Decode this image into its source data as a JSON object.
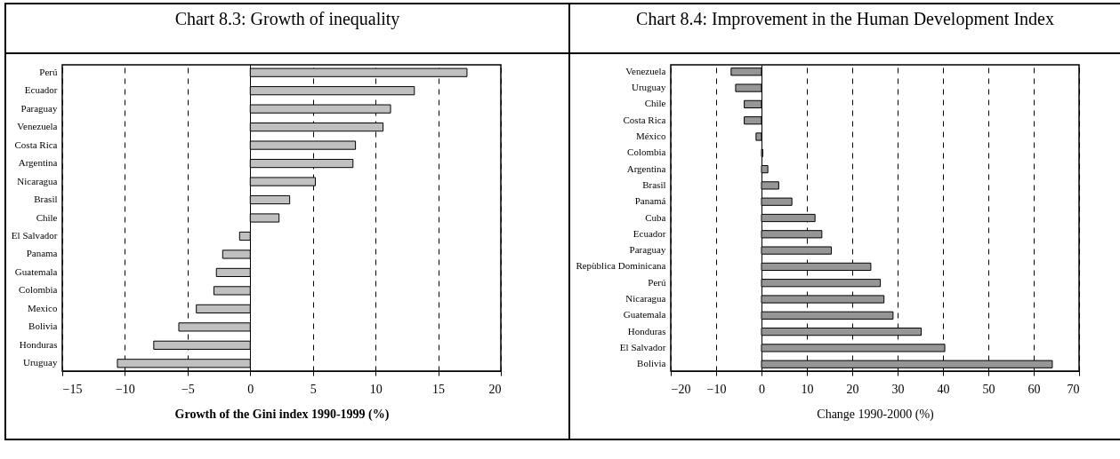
{
  "chart_data": [
    {
      "type": "bar",
      "orientation": "horizontal",
      "title": "Chart 8.3: Growth of inequality",
      "xlabel": "Growth of the Gini index 1990-1999 (%)",
      "categories": [
        "Perú",
        "Ecuador",
        "Paraguay",
        "Venezuela",
        "Costa Rica",
        "Argentina",
        "Nicaragua",
        "Brasil",
        "Chile",
        "El Salvador",
        "Panama",
        "Guatemala",
        "Colombia",
        "Mexico",
        "Bolivia",
        "Honduras",
        "Uruguay"
      ],
      "values": [
        17.3,
        13.1,
        11.2,
        10.6,
        8.4,
        8.2,
        5.2,
        3.15,
        2.3,
        -0.85,
        -2.2,
        -2.7,
        -2.9,
        -4.3,
        -5.7,
        -7.7,
        -10.6
      ],
      "color": "#c0c0c0",
      "xlim": [
        -15,
        20
      ],
      "xticks": [
        -15,
        -10,
        -5,
        0,
        5,
        10,
        15,
        20
      ],
      "grid": "x"
    },
    {
      "type": "bar",
      "orientation": "horizontal",
      "title": "Chart 8.4: Improvement in the Human Development Index",
      "xlabel": "Change 1990-2000 (%)",
      "categories": [
        "Venezuela",
        "Uruguay",
        "Chile",
        "Costa Rica",
        "México",
        "Colombia",
        "Argentina",
        "Brasil",
        "Panamá",
        "Cuba",
        "Ecuador",
        "Paraguay",
        "Repùblica Dominicana",
        "Perú",
        "Nicaragua",
        "Guatemala",
        "Honduras",
        "El Salvador",
        "Bolivia"
      ],
      "values": [
        -6.7,
        -5.7,
        -3.8,
        -3.8,
        -1.2,
        0.3,
        1.4,
        3.8,
        6.7,
        11.8,
        13.3,
        15.4,
        24.1,
        26.2,
        27.0,
        29.0,
        35.2,
        40.4,
        64.1
      ],
      "color": "#969696",
      "xlim": [
        -20,
        70
      ],
      "xticks": [
        -20,
        -10,
        0,
        10,
        20,
        30,
        40,
        50,
        60,
        70
      ],
      "grid": "x"
    }
  ]
}
